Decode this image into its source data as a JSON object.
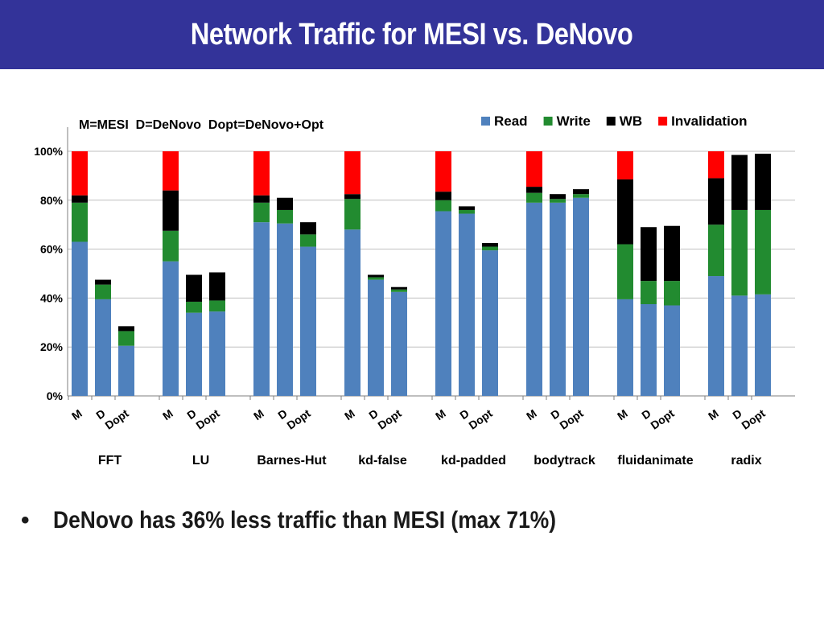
{
  "title": "Network Traffic for MESI vs. DeNovo",
  "bullet": {
    "marker": "•",
    "text": "DeNovo has 36% less traffic than MESI (max 71%)"
  },
  "colors": {
    "title_bar": "#333399",
    "Read": "#4f81bd",
    "Write": "#228b30",
    "WB": "#000000",
    "Invalidation": "#ff0000"
  },
  "chart_data": {
    "type": "bar",
    "stacked": true,
    "annotation": "M=MESI  D=DeNovo  Dopt=DeNovo+Opt",
    "legend_position": "top-right",
    "grid": true,
    "ylim": [
      0,
      100
    ],
    "y_ticks": [
      "0%",
      "20%",
      "40%",
      "60%",
      "80%",
      "100%"
    ],
    "bar_labels": [
      "M",
      "D",
      "Dopt"
    ],
    "series_names": [
      "Read",
      "Write",
      "WB",
      "Invalidation"
    ],
    "groups": [
      {
        "name": "FFT",
        "bars": [
          {
            "label": "M",
            "values": [
              63,
              16,
              3,
              18
            ]
          },
          {
            "label": "D",
            "values": [
              39.5,
              6,
              2,
              0
            ]
          },
          {
            "label": "Dopt",
            "values": [
              20.5,
              6,
              2,
              0
            ]
          }
        ]
      },
      {
        "name": "LU",
        "bars": [
          {
            "label": "M",
            "values": [
              55,
              12.5,
              16.5,
              16
            ]
          },
          {
            "label": "D",
            "values": [
              34,
              4.5,
              11,
              0
            ]
          },
          {
            "label": "Dopt",
            "values": [
              34.5,
              4.5,
              11.5,
              0
            ]
          }
        ]
      },
      {
        "name": "Barnes-Hut",
        "bars": [
          {
            "label": "M",
            "values": [
              71,
              8,
              3,
              18
            ]
          },
          {
            "label": "D",
            "values": [
              70.5,
              5.5,
              5,
              0
            ]
          },
          {
            "label": "Dopt",
            "values": [
              61,
              5,
              5,
              0
            ]
          }
        ]
      },
      {
        "name": "kd-false",
        "bars": [
          {
            "label": "M",
            "values": [
              68,
              12.5,
              2,
              17.5
            ]
          },
          {
            "label": "D",
            "values": [
              47.5,
              1,
              1,
              0
            ]
          },
          {
            "label": "Dopt",
            "values": [
              42.5,
              1,
              1,
              0
            ]
          }
        ]
      },
      {
        "name": "kd-padded",
        "bars": [
          {
            "label": "M",
            "values": [
              75.5,
              4.5,
              3.5,
              16.5
            ]
          },
          {
            "label": "D",
            "values": [
              74.5,
              1.5,
              1.5,
              0
            ]
          },
          {
            "label": "Dopt",
            "values": [
              59.5,
              1.5,
              1.5,
              0
            ]
          }
        ]
      },
      {
        "name": "bodytrack",
        "bars": [
          {
            "label": "M",
            "values": [
              79,
              4,
              2.5,
              14.5
            ]
          },
          {
            "label": "D",
            "values": [
              79,
              1.5,
              2,
              0
            ]
          },
          {
            "label": "Dopt",
            "values": [
              81,
              1.5,
              2,
              0
            ]
          }
        ]
      },
      {
        "name": "fluidanimate",
        "bars": [
          {
            "label": "M",
            "values": [
              39.5,
              22.5,
              26.5,
              11.5
            ]
          },
          {
            "label": "D",
            "values": [
              37.5,
              9.5,
              22,
              0
            ]
          },
          {
            "label": "Dopt",
            "values": [
              37,
              10,
              22.5,
              0
            ]
          }
        ]
      },
      {
        "name": "radix",
        "bars": [
          {
            "label": "M",
            "values": [
              49,
              21,
              19,
              11
            ]
          },
          {
            "label": "D",
            "values": [
              41,
              35,
              22.5,
              0
            ]
          },
          {
            "label": "Dopt",
            "values": [
              41.5,
              34.5,
              23,
              0
            ]
          }
        ]
      }
    ]
  }
}
